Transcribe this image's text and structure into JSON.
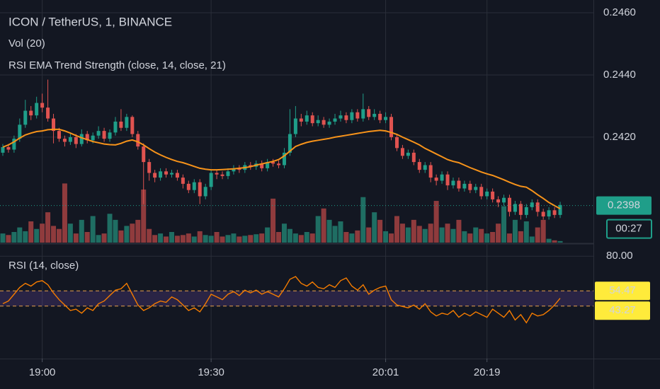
{
  "chart_data": [
    {
      "type": "candlestick",
      "title": "ICON / TetherUS, 1, BINANCE",
      "volume_title": "Vol (20)",
      "indicator_title": "RSI EMA Trend Strength (close, 14, close, 21)",
      "categories": [
        null,
        null,
        null,
        null,
        null,
        null,
        null,
        "19:00",
        null,
        null,
        null,
        null,
        null,
        null,
        null,
        null,
        null,
        null,
        null,
        null,
        null,
        null,
        null,
        null,
        null,
        null,
        null,
        null,
        null,
        null,
        null,
        null,
        null,
        null,
        null,
        null,
        null,
        "19:30",
        null,
        null,
        null,
        null,
        null,
        null,
        null,
        null,
        null,
        null,
        null,
        null,
        null,
        null,
        null,
        null,
        null,
        null,
        null,
        null,
        null,
        null,
        null,
        null,
        null,
        null,
        null,
        null,
        null,
        null,
        "20:01",
        null,
        null,
        null,
        null,
        null,
        null,
        null,
        null,
        null,
        null,
        null,
        null,
        null,
        null,
        null,
        null,
        null,
        "20:19",
        null,
        null,
        null,
        null,
        null,
        null,
        null,
        null,
        null,
        null,
        null,
        null,
        null
      ],
      "open": [
        0.2415,
        0.24168,
        0.2416,
        0.24195,
        0.2424,
        0.24285,
        0.2427,
        0.2431,
        0.24295,
        0.2426,
        0.2422,
        0.24195,
        0.24185,
        0.242,
        0.24178,
        0.2421,
        0.2419,
        0.24205,
        0.2422,
        0.24195,
        0.24215,
        0.2425,
        0.2423,
        0.24265,
        0.2421,
        0.2417,
        0.2412,
        0.24085,
        0.2407,
        0.2409,
        0.2408,
        0.24085,
        0.2407,
        0.2405,
        0.2403,
        0.24055,
        0.2401,
        0.2404,
        0.24085,
        0.2408,
        0.24075,
        0.2409,
        0.241,
        0.24095,
        0.2411,
        0.24105,
        0.24115,
        0.241,
        0.2412,
        0.24115,
        0.2411,
        0.2415,
        0.2421,
        0.2426,
        0.2425,
        0.2427,
        0.24245,
        0.24255,
        0.2424,
        0.2425,
        0.2426,
        0.2427,
        0.24255,
        0.2428,
        0.2426,
        0.2429,
        0.24265,
        0.24275,
        0.24255,
        0.24265,
        0.242,
        0.24165,
        0.2414,
        0.2415,
        0.2412,
        0.24095,
        0.2411,
        0.2407,
        0.2406,
        0.2408,
        0.24045,
        0.2406,
        0.24035,
        0.2405,
        0.2403,
        0.2404,
        0.2401,
        0.24025,
        0.24,
        0.2399,
        0.24005,
        0.2396,
        0.23985,
        0.2395,
        0.23975,
        0.2399,
        0.2396,
        0.23945,
        0.23965,
        0.2395
      ],
      "high": [
        0.24178,
        0.24178,
        0.24205,
        0.2426,
        0.2432,
        0.243,
        0.2433,
        0.2434,
        0.24385,
        0.24275,
        0.2423,
        0.24205,
        0.24215,
        0.2421,
        0.24225,
        0.2422,
        0.24215,
        0.24235,
        0.2423,
        0.24225,
        0.24265,
        0.2429,
        0.24275,
        0.2427,
        0.2422,
        0.2418,
        0.2413,
        0.24095,
        0.241,
        0.241,
        0.24095,
        0.24095,
        0.2408,
        0.2406,
        0.24065,
        0.24065,
        0.2405,
        0.24095,
        0.24095,
        0.2409,
        0.241,
        0.2411,
        0.2411,
        0.2412,
        0.2412,
        0.24125,
        0.24125,
        0.2413,
        0.2413,
        0.24125,
        0.24165,
        0.2429,
        0.243,
        0.24275,
        0.24285,
        0.2428,
        0.2427,
        0.24265,
        0.2426,
        0.24275,
        0.24285,
        0.2428,
        0.2429,
        0.2429,
        0.2434,
        0.243,
        0.2429,
        0.24285,
        0.2428,
        0.24275,
        0.2421,
        0.24175,
        0.2416,
        0.2416,
        0.2413,
        0.2412,
        0.2412,
        0.2408,
        0.2409,
        0.2409,
        0.2407,
        0.2407,
        0.2406,
        0.2406,
        0.2405,
        0.2405,
        0.24035,
        0.24035,
        0.2401,
        0.24015,
        0.24015,
        0.23995,
        0.23995,
        0.23985,
        0.24,
        0.24,
        0.2397,
        0.23975,
        0.23975,
        0.23992
      ],
      "low": [
        0.2414,
        0.2415,
        0.2415,
        0.24185,
        0.2423,
        0.24255,
        0.2426,
        0.2428,
        0.2425,
        0.2418,
        0.24185,
        0.2417,
        0.24175,
        0.24165,
        0.2417,
        0.2418,
        0.2418,
        0.24195,
        0.24185,
        0.24185,
        0.24205,
        0.2422,
        0.2422,
        0.242,
        0.2416,
        0.23985,
        0.2406,
        0.24055,
        0.2406,
        0.2407,
        0.2407,
        0.2406,
        0.24035,
        0.2402,
        0.2402,
        0.23985,
        0.24,
        0.2403,
        0.24065,
        0.24065,
        0.24065,
        0.2408,
        0.24085,
        0.24085,
        0.24095,
        0.24095,
        0.2409,
        0.2409,
        0.24105,
        0.241,
        0.241,
        0.2414,
        0.242,
        0.24235,
        0.2424,
        0.24235,
        0.24235,
        0.2423,
        0.2423,
        0.2424,
        0.2425,
        0.24245,
        0.24245,
        0.2425,
        0.2425,
        0.24255,
        0.24255,
        0.24245,
        0.24245,
        0.2419,
        0.24155,
        0.2413,
        0.2413,
        0.2411,
        0.24085,
        0.24085,
        0.24055,
        0.24045,
        0.2405,
        0.2403,
        0.24035,
        0.24025,
        0.24025,
        0.2402,
        0.2402,
        0.24,
        0.24,
        0.2399,
        0.23975,
        0.2398,
        0.23945,
        0.2395,
        0.23935,
        0.2394,
        0.23965,
        0.23945,
        0.23935,
        0.23935,
        0.2394,
        0.2394
      ],
      "close": [
        0.24168,
        0.2416,
        0.24195,
        0.2424,
        0.24285,
        0.2427,
        0.2431,
        0.24295,
        0.2426,
        0.2422,
        0.24195,
        0.24185,
        0.242,
        0.24178,
        0.2421,
        0.2419,
        0.24205,
        0.2422,
        0.24195,
        0.24215,
        0.2425,
        0.2423,
        0.24265,
        0.2421,
        0.2417,
        0.2412,
        0.24085,
        0.2407,
        0.2409,
        0.2408,
        0.24085,
        0.2407,
        0.2405,
        0.2403,
        0.24055,
        0.2401,
        0.2404,
        0.24085,
        0.2408,
        0.24075,
        0.2409,
        0.241,
        0.24095,
        0.2411,
        0.24105,
        0.24115,
        0.241,
        0.2412,
        0.24115,
        0.2411,
        0.2415,
        0.2421,
        0.2426,
        0.2425,
        0.2427,
        0.24245,
        0.24255,
        0.2424,
        0.2425,
        0.2426,
        0.2427,
        0.24255,
        0.2428,
        0.2426,
        0.2429,
        0.24265,
        0.24275,
        0.24255,
        0.24265,
        0.242,
        0.24165,
        0.2414,
        0.2415,
        0.2412,
        0.24095,
        0.2411,
        0.2407,
        0.2406,
        0.2408,
        0.24045,
        0.2406,
        0.24035,
        0.2405,
        0.2403,
        0.2404,
        0.2401,
        0.24025,
        0.24,
        0.2399,
        0.24005,
        0.2396,
        0.23985,
        0.2395,
        0.23975,
        0.2399,
        0.2396,
        0.23945,
        0.23965,
        0.2395,
        0.23982
      ],
      "volume": [
        12,
        10,
        14,
        20,
        15,
        28,
        18,
        25,
        40,
        22,
        18,
        78,
        25,
        12,
        30,
        14,
        35,
        10,
        12,
        38,
        30,
        16,
        22,
        25,
        30,
        70,
        18,
        10,
        12,
        8,
        14,
        9,
        10,
        12,
        8,
        15,
        10,
        9,
        14,
        8,
        10,
        12,
        8,
        9,
        10,
        11,
        12,
        20,
        58,
        14,
        25,
        18,
        12,
        10,
        14,
        12,
        35,
        45,
        30,
        22,
        28,
        14,
        12,
        16,
        60,
        20,
        40,
        30,
        15,
        12,
        35,
        25,
        20,
        30,
        22,
        18,
        25,
        55,
        20,
        25,
        18,
        30,
        15,
        12,
        20,
        18,
        12,
        14,
        25,
        48,
        12,
        30,
        15,
        28,
        8,
        20,
        30,
        5,
        3,
        2
      ],
      "ema": [
        0.24168,
        0.24175,
        0.24185,
        0.24197,
        0.24207,
        0.24213,
        0.24218,
        0.2422,
        0.24224,
        0.24225,
        0.24225,
        0.2422,
        0.24213,
        0.24205,
        0.24198,
        0.24192,
        0.24186,
        0.24182,
        0.24178,
        0.24176,
        0.24175,
        0.2418,
        0.24187,
        0.24191,
        0.24185,
        0.24175,
        0.24163,
        0.24152,
        0.24143,
        0.24135,
        0.24128,
        0.24122,
        0.24118,
        0.24112,
        0.24106,
        0.241,
        0.24097,
        0.24095,
        0.24095,
        0.24096,
        0.24097,
        0.24098,
        0.241,
        0.24102,
        0.24105,
        0.2411,
        0.24114,
        0.24118,
        0.24122,
        0.24128,
        0.2414,
        0.24155,
        0.2417,
        0.24177,
        0.24183,
        0.24187,
        0.2419,
        0.24193,
        0.24196,
        0.242,
        0.24203,
        0.24206,
        0.24209,
        0.24212,
        0.24215,
        0.24218,
        0.2422,
        0.24222,
        0.2422,
        0.24215,
        0.24209,
        0.242,
        0.24192,
        0.24184,
        0.24175,
        0.24164,
        0.24155,
        0.24146,
        0.24137,
        0.24128,
        0.24122,
        0.24118,
        0.2411,
        0.24102,
        0.24095,
        0.24088,
        0.24082,
        0.24077,
        0.2407,
        0.24063,
        0.24055,
        0.24048,
        0.24042,
        0.24039,
        0.24028,
        0.24015,
        0.24003,
        0.2399,
        0.2398,
        0.2397
      ],
      "ylim": [
        0.23861,
        0.24641
      ],
      "yticks": [
        {
          "value": 0.246,
          "label": "0.2460"
        },
        {
          "value": 0.244,
          "label": "0.2440"
        },
        {
          "value": 0.242,
          "label": "0.2420"
        }
      ],
      "volume_ylim": [
        0,
        320
      ],
      "last_price": {
        "value": 0.2398,
        "label": "0.2398"
      },
      "countdown": "00:27",
      "up_color": "#1f9e89",
      "down_color": "#e05350",
      "volume_up_color": "#1f6e63",
      "volume_down_color": "#8f3b3d",
      "ema_color": "#f7931a",
      "grid": true
    },
    {
      "type": "line",
      "title": "RSI (14, close)",
      "values": [
        45,
        47,
        52,
        57,
        60,
        58,
        61,
        62,
        59,
        53,
        48,
        44,
        40,
        41,
        38,
        42,
        40,
        45,
        47,
        51,
        55,
        56,
        60,
        52,
        44,
        40,
        42,
        45,
        47,
        46,
        50,
        48,
        44,
        40,
        42,
        39,
        45,
        52,
        50,
        48,
        52,
        54,
        51,
        55,
        53,
        55,
        52,
        54,
        52,
        50,
        56,
        63,
        65,
        60,
        58,
        61,
        57,
        56,
        59,
        57,
        62,
        64,
        58,
        55,
        59,
        52,
        55,
        57,
        58,
        48,
        44,
        43,
        42,
        44,
        41,
        45,
        39,
        36,
        38,
        37,
        40,
        35,
        38,
        36,
        39,
        37,
        35,
        41,
        38,
        35,
        40,
        33,
        37,
        31,
        38,
        36,
        37,
        40,
        44,
        49
      ],
      "ylim": [
        3,
        89
      ],
      "yticks": [
        {
          "value": 80,
          "label": "80.00"
        }
      ],
      "bands": [
        {
          "value": 54.47,
          "label": "54.47"
        },
        {
          "value": 43.27,
          "label": "43.27"
        }
      ],
      "color": "#f57c00",
      "band_color": "#7e57c2",
      "band_line_color": "#e8a04a",
      "label_color": "#ffeb3b"
    }
  ]
}
